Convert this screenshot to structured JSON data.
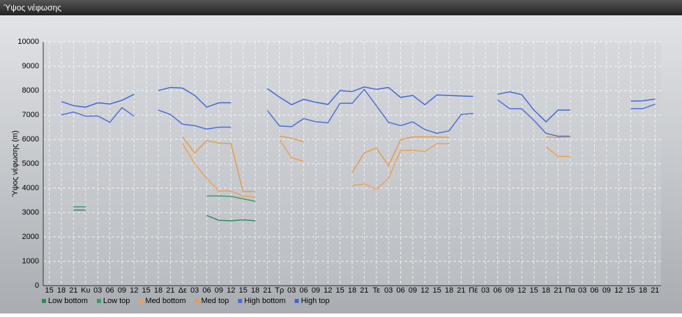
{
  "chart_data": {
    "type": "line",
    "window_title": "Ύψος νέφωσης",
    "y_label": "Ύψος νέφωσης (m)",
    "categories": [
      "15",
      "18",
      "21",
      "Κυ",
      "03",
      "06",
      "09",
      "12",
      "15",
      "18",
      "21",
      "Δε",
      "03",
      "06",
      "09",
      "12",
      "15",
      "18",
      "21",
      "Τρ",
      "03",
      "06",
      "09",
      "12",
      "15",
      "18",
      "21",
      "Τε",
      "03",
      "06",
      "09",
      "12",
      "15",
      "18",
      "21",
      "Πέ",
      "03",
      "06",
      "09",
      "12",
      "15",
      "18",
      "21",
      "Πα",
      "03",
      "06",
      "09",
      "12",
      "15",
      "18",
      "21"
    ],
    "ylim": [
      0,
      10000
    ],
    "yticks": [
      0,
      1000,
      2000,
      3000,
      4000,
      5000,
      6000,
      7000,
      8000,
      9000,
      10000
    ],
    "grid": true,
    "series": [
      {
        "name": "Low bottom",
        "color": "#2e8b57",
        "values": [
          null,
          null,
          3100,
          3100,
          null,
          null,
          null,
          null,
          null,
          null,
          null,
          null,
          null,
          2880,
          2680,
          2660,
          2700,
          2660,
          null,
          null,
          null,
          null,
          null,
          null,
          null,
          null,
          null,
          null,
          null,
          null,
          null,
          null,
          null,
          null,
          null,
          null,
          null,
          null,
          null,
          null,
          null,
          null,
          null,
          null,
          null,
          null,
          null,
          null,
          null,
          null,
          null
        ]
      },
      {
        "name": "Low top",
        "color": "#3a9a6a",
        "values": [
          null,
          null,
          3230,
          3230,
          null,
          null,
          null,
          null,
          null,
          null,
          null,
          null,
          null,
          3680,
          3680,
          3660,
          3560,
          3460,
          null,
          null,
          null,
          null,
          null,
          null,
          null,
          null,
          null,
          null,
          null,
          null,
          null,
          null,
          null,
          null,
          null,
          null,
          null,
          null,
          null,
          null,
          null,
          null,
          null,
          null,
          null,
          null,
          null,
          null,
          null,
          null,
          null
        ]
      },
      {
        "name": "Med bottom",
        "color": "#f0a050",
        "values": [
          null,
          null,
          null,
          null,
          null,
          null,
          null,
          null,
          null,
          null,
          null,
          5820,
          5000,
          4400,
          3880,
          3880,
          3680,
          3620,
          null,
          5980,
          5250,
          5100,
          null,
          null,
          null,
          4100,
          4170,
          3950,
          4400,
          5550,
          5550,
          5500,
          5820,
          5820,
          null,
          null,
          null,
          null,
          null,
          null,
          null,
          5700,
          5300,
          5300,
          null,
          null,
          null,
          null,
          null,
          null,
          null
        ]
      },
      {
        "name": "Med top",
        "color": "#eb9a45",
        "values": [
          null,
          null,
          null,
          null,
          null,
          null,
          null,
          null,
          null,
          null,
          null,
          6100,
          5450,
          5950,
          5850,
          5820,
          3860,
          3860,
          null,
          6130,
          6050,
          5900,
          null,
          null,
          null,
          4650,
          5440,
          5650,
          4920,
          5980,
          6100,
          6100,
          6100,
          6080,
          null,
          null,
          null,
          null,
          null,
          null,
          null,
          6100,
          6080,
          6100,
          null,
          null,
          null,
          null,
          null,
          null,
          null
        ]
      },
      {
        "name": "High bottom",
        "color": "#4a6fd8",
        "values": [
          null,
          7000,
          7120,
          6950,
          6960,
          6700,
          7300,
          6950,
          null,
          7200,
          7020,
          6620,
          6560,
          6420,
          6500,
          6500,
          null,
          null,
          7180,
          6550,
          6520,
          6850,
          6720,
          6680,
          7480,
          7480,
          8050,
          7380,
          6700,
          6560,
          6720,
          6400,
          6250,
          6350,
          7020,
          7060,
          null,
          7620,
          7260,
          7250,
          6780,
          6250,
          6130,
          6130,
          null,
          null,
          null,
          null,
          7260,
          7260,
          7440
        ]
      },
      {
        "name": "High top",
        "color": "#3f66d6",
        "values": [
          null,
          7550,
          7380,
          7320,
          7500,
          7450,
          7600,
          7850,
          null,
          8000,
          8130,
          8100,
          7800,
          7320,
          7500,
          7500,
          null,
          null,
          8080,
          7730,
          7420,
          7640,
          7520,
          7430,
          8000,
          7960,
          8150,
          8050,
          8130,
          7720,
          7800,
          7420,
          7820,
          7800,
          7780,
          7760,
          null,
          7850,
          7950,
          7830,
          7200,
          6720,
          7200,
          7200,
          null,
          null,
          null,
          null,
          7570,
          7580,
          7650
        ]
      }
    ]
  }
}
